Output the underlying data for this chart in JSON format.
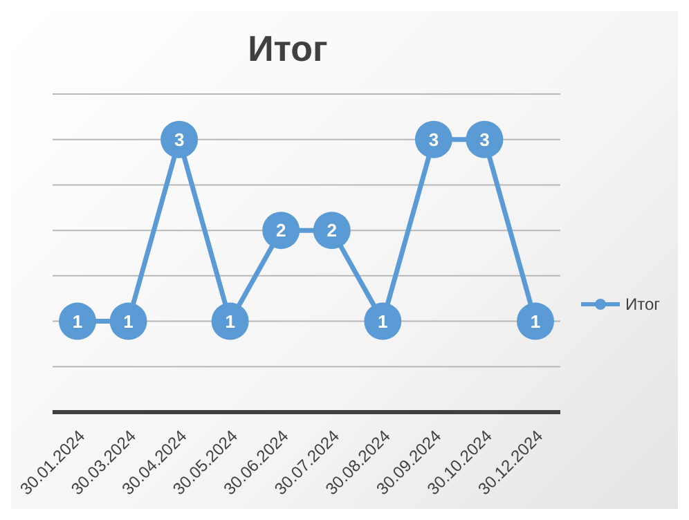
{
  "chart_data": {
    "type": "line",
    "title": "Итог",
    "categories": [
      "30.01.2024",
      "30.03.2024",
      "30.04.2024",
      "30.05.2024",
      "30.06.2024",
      "30.07.2024",
      "30.08.2024",
      "30.09.2024",
      "30.10.2024",
      "30.12.2024"
    ],
    "series": [
      {
        "name": "Итог",
        "color": "#5b9bd5",
        "values": [
          1,
          1,
          3,
          1,
          2,
          2,
          1,
          3,
          3,
          1
        ]
      }
    ],
    "ylim": [
      0,
      3.5
    ],
    "yticks": [
      0,
      {
        "value": 0.5,
        "label": null
      },
      {
        "value": 1,
        "label": null
      },
      {
        "value": 1.5,
        "label": null
      },
      {
        "value": 2,
        "label": null
      },
      {
        "value": 2.5,
        "label": null
      },
      {
        "value": 3,
        "label": null
      },
      {
        "value": 3.5,
        "label": null
      }
    ],
    "tick_labels": "x",
    "grid": "y",
    "legend": "right",
    "marker": "circle",
    "line_style": "solid",
    "data_labels": true
  }
}
